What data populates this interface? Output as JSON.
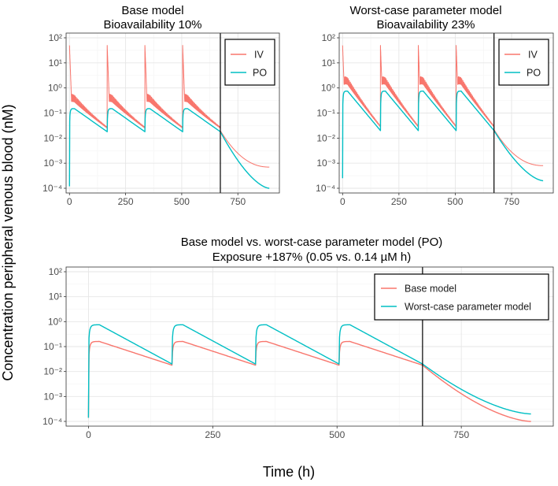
{
  "figure": {
    "ylabel": "Concentration peripheral venous blood (nM)",
    "xlabel": "Time (h)"
  },
  "colors": {
    "red": "#F8766D",
    "teal": "#00BFC4",
    "grid_major": "#e6e6e6",
    "grid_minor": "#f3f3f3",
    "vline": "#000000"
  },
  "chart_data": [
    {
      "type": "line",
      "title": "Base model",
      "subtitle": "Bioavailability 10%",
      "y_scale": "log10",
      "ylim_exp": [
        -4,
        2
      ],
      "y_tick_exps": [
        -4,
        -3,
        -2,
        -1,
        0,
        1,
        2
      ],
      "xlim": [
        -15,
        935
      ],
      "x_ticks": [
        0,
        250,
        500,
        750
      ],
      "x_tick_labels": [
        "0",
        "250",
        "500",
        "750"
      ],
      "vline_x": 672,
      "legend": [
        "IV",
        "PO"
      ],
      "series": [
        {
          "name": "IV",
          "color_key": "red",
          "kind": "iv",
          "peak": 50,
          "oscillation": true,
          "tail_end": 0.0007
        },
        {
          "name": "PO",
          "color_key": "teal",
          "kind": "po",
          "start": 0.00012,
          "peak": 0.15,
          "trough": 0.018,
          "tail_end": 0.0001
        }
      ]
    },
    {
      "type": "line",
      "title": "Worst-case parameter model",
      "subtitle": "Bioavailability 23%",
      "y_scale": "log10",
      "ylim_exp": [
        -4,
        2
      ],
      "y_tick_exps": [
        -4,
        -3,
        -2,
        -1,
        0,
        1,
        2
      ],
      "xlim": [
        -15,
        935
      ],
      "x_ticks": [
        0,
        250,
        500,
        750
      ],
      "x_tick_labels": [
        "0",
        "250",
        "500",
        "750"
      ],
      "vline_x": 672,
      "legend": [
        "IV",
        "PO"
      ],
      "series": [
        {
          "name": "IV",
          "color_key": "red",
          "kind": "iv",
          "peak": 50,
          "oscillation": true,
          "tail_end": 0.0008
        },
        {
          "name": "PO",
          "color_key": "teal",
          "kind": "po",
          "start": 0.00025,
          "peak": 0.75,
          "trough": 0.02,
          "tail_end": 0.0002
        }
      ]
    },
    {
      "type": "line",
      "title": "Base model vs. worst-case parameter model (PO)",
      "subtitle": "Exposure +187% (0.05 vs. 0.14 µM h)",
      "y_scale": "log10",
      "ylim_exp": [
        -4,
        2
      ],
      "y_tick_exps": [
        -4,
        -3,
        -2,
        -1,
        0,
        1,
        2
      ],
      "xlim": [
        -45,
        935
      ],
      "x_ticks": [
        0,
        250,
        500,
        750
      ],
      "x_tick_labels": [
        "0",
        "250",
        "500",
        "750"
      ],
      "vline_x": 672,
      "legend": [
        "Base model",
        "Worst-case parameter model"
      ],
      "series": [
        {
          "name": "Base model",
          "color_key": "red",
          "kind": "po",
          "start": 0.00014,
          "peak": 0.16,
          "trough": 0.018,
          "tail_end": 0.0001
        },
        {
          "name": "Worst-case parameter model",
          "color_key": "teal",
          "kind": "po",
          "start": 0.00014,
          "peak": 0.75,
          "trough": 0.02,
          "tail_end": 0.0002
        }
      ]
    }
  ]
}
